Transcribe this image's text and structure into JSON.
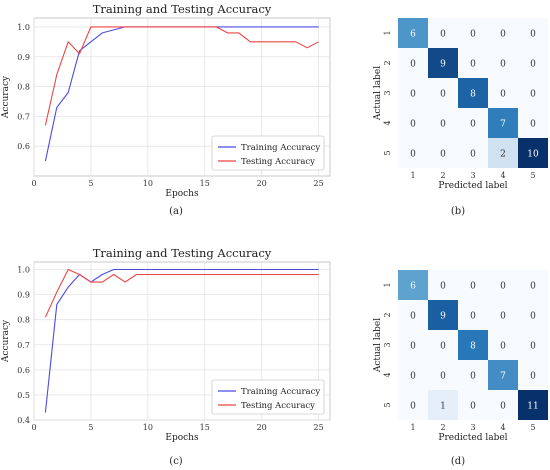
{
  "panels": [
    {
      "label": "(a)"
    },
    {
      "label": "(b)"
    },
    {
      "label": "(c)"
    },
    {
      "label": "(d)"
    }
  ],
  "colors": {
    "training": "#4b4be6",
    "testing": "#ee4444",
    "cm_low": "#f7fbff",
    "cm_high": "#08306b"
  },
  "chart_data": [
    {
      "type": "line",
      "panel": "(a)",
      "title": "Training and Testing Accuracy",
      "xlabel": "Epochs",
      "ylabel": "Accuracy",
      "xlim": [
        0,
        26
      ],
      "ylim": [
        0.5,
        1.03
      ],
      "xticks": [
        0,
        5,
        10,
        15,
        20,
        25
      ],
      "yticks": [
        0.6,
        0.7,
        0.8,
        0.9,
        1.0
      ],
      "ytick_labels": [
        "0.6",
        "0.7",
        "0.8",
        "0.9",
        "1.0"
      ],
      "grid": true,
      "legend_position": "bottom-right",
      "x": [
        1,
        2,
        3,
        4,
        5,
        6,
        7,
        8,
        9,
        10,
        11,
        12,
        13,
        14,
        15,
        16,
        17,
        18,
        19,
        20,
        21,
        22,
        23,
        24,
        25
      ],
      "series": [
        {
          "name": "Training Accuracy",
          "color": "#4b4be6",
          "values": [
            0.55,
            0.73,
            0.78,
            0.92,
            0.95,
            0.98,
            0.99,
            1.0,
            1.0,
            1.0,
            1.0,
            1.0,
            1.0,
            1.0,
            1.0,
            1.0,
            1.0,
            1.0,
            1.0,
            1.0,
            1.0,
            1.0,
            1.0,
            1.0,
            1.0
          ]
        },
        {
          "name": "Testing Accuracy",
          "color": "#ee4444",
          "values": [
            0.67,
            0.84,
            0.95,
            0.91,
            1.0,
            1.0,
            1.0,
            1.0,
            1.0,
            1.0,
            1.0,
            1.0,
            1.0,
            1.0,
            1.0,
            1.0,
            0.98,
            0.98,
            0.95,
            0.95,
            0.95,
            0.95,
            0.95,
            0.93,
            0.95
          ]
        }
      ]
    },
    {
      "type": "heatmap",
      "panel": "(b)",
      "xlabel": "Predicted label",
      "ylabel": "Actual label",
      "xticks": [
        "1",
        "2",
        "3",
        "4",
        "5"
      ],
      "yticks": [
        "1",
        "2",
        "3",
        "4",
        "5"
      ],
      "max": 10,
      "matrix": [
        [
          6,
          0,
          0,
          0,
          0
        ],
        [
          0,
          9,
          0,
          0,
          0
        ],
        [
          0,
          0,
          8,
          0,
          0
        ],
        [
          0,
          0,
          0,
          7,
          0
        ],
        [
          0,
          0,
          0,
          2,
          10
        ]
      ]
    },
    {
      "type": "line",
      "panel": "(c)",
      "title": "Training and Testing Accuracy",
      "xlabel": "Epochs",
      "ylabel": "Accuracy",
      "xlim": [
        0,
        26
      ],
      "ylim": [
        0.4,
        1.03
      ],
      "xticks": [
        0,
        5,
        10,
        15,
        20,
        25
      ],
      "yticks": [
        0.4,
        0.5,
        0.6,
        0.7,
        0.8,
        0.9,
        1.0
      ],
      "ytick_labels": [
        "0.4",
        "0.5",
        "0.6",
        "0.7",
        "0.8",
        "0.9",
        "1.0"
      ],
      "grid": true,
      "legend_position": "bottom-right",
      "x": [
        1,
        2,
        3,
        4,
        5,
        6,
        7,
        8,
        9,
        10,
        11,
        12,
        13,
        14,
        15,
        16,
        17,
        18,
        19,
        20,
        21,
        22,
        23,
        24,
        25
      ],
      "series": [
        {
          "name": "Training Accuracy",
          "color": "#4b4be6",
          "values": [
            0.43,
            0.86,
            0.93,
            0.98,
            0.95,
            0.98,
            1.0,
            1.0,
            1.0,
            1.0,
            1.0,
            1.0,
            1.0,
            1.0,
            1.0,
            1.0,
            1.0,
            1.0,
            1.0,
            1.0,
            1.0,
            1.0,
            1.0,
            1.0,
            1.0
          ]
        },
        {
          "name": "Testing Accuracy",
          "color": "#ee4444",
          "values": [
            0.81,
            0.91,
            1.0,
            0.98,
            0.95,
            0.95,
            0.98,
            0.95,
            0.98,
            0.98,
            0.98,
            0.98,
            0.98,
            0.98,
            0.98,
            0.98,
            0.98,
            0.98,
            0.98,
            0.98,
            0.98,
            0.98,
            0.98,
            0.98,
            0.98
          ]
        }
      ]
    },
    {
      "type": "heatmap",
      "panel": "(d)",
      "xlabel": "Predicted label",
      "ylabel": "Actual label",
      "xticks": [
        "1",
        "2",
        "3",
        "4",
        "5"
      ],
      "yticks": [
        "1",
        "2",
        "3",
        "4",
        "5"
      ],
      "max": 11,
      "matrix": [
        [
          6,
          0,
          0,
          0,
          0
        ],
        [
          0,
          9,
          0,
          0,
          0
        ],
        [
          0,
          0,
          8,
          0,
          0
        ],
        [
          0,
          0,
          0,
          7,
          0
        ],
        [
          0,
          1,
          0,
          0,
          11
        ]
      ]
    }
  ]
}
